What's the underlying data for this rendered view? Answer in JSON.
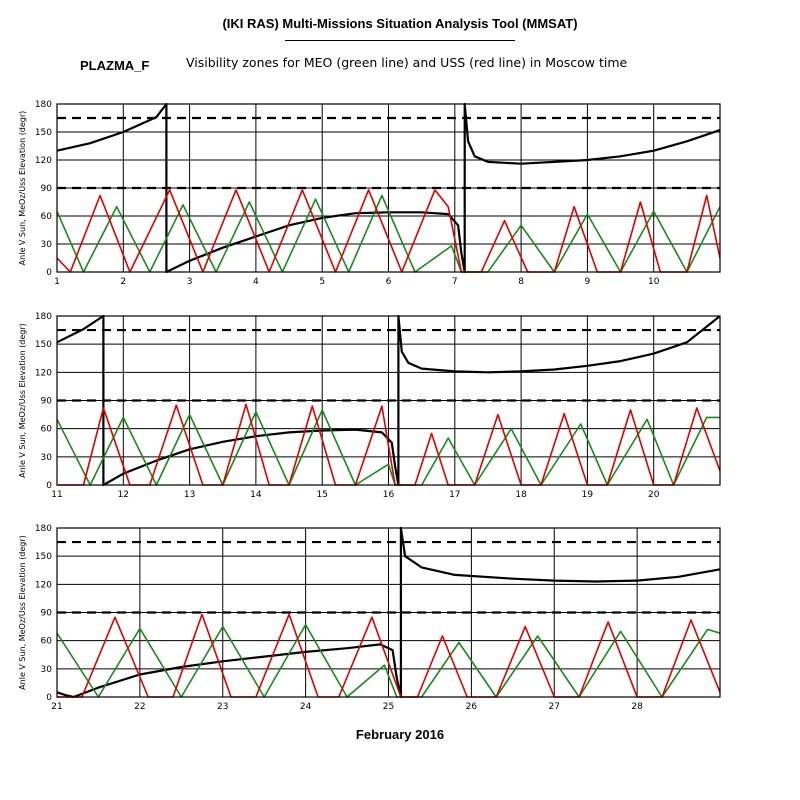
{
  "header": {
    "title": "(IKI RAS) Multi-Missions Situation Analysis Tool (MMSAT)",
    "mission": "PLAZMA_F",
    "subtitle": "Visibility zones for MEO (green line) and USS (red line) in Moscow time"
  },
  "colors": {
    "meo": "#1a8a1a",
    "uss": "#e00000",
    "sun": "#000000"
  },
  "chart_data": {
    "type": "line",
    "xlabel": "February 2016",
    "ylabel": "Anle V Sun, MeOz/Uss Elevation (degr)",
    "yticks": [
      0,
      30,
      60,
      90,
      120,
      150,
      180
    ],
    "ylim": [
      0,
      180
    ],
    "reference_lines": [
      90,
      165
    ],
    "grid": true,
    "panels": [
      {
        "xlim": [
          1,
          11
        ],
        "xticks": [
          1,
          2,
          3,
          4,
          5,
          6,
          7,
          8,
          9,
          10
        ],
        "series": [
          {
            "name": "Anle V Sun",
            "x": [
              1,
              1.5,
              2,
              2.5,
              2.65,
              2.65,
              3,
              3.5,
              4,
              4.5,
              5,
              5.5,
              6,
              6.5,
              6.9,
              7.05,
              7.1,
              7.15,
              7.15,
              7.2,
              7.3,
              7.5,
              8,
              8.5,
              9,
              9.5,
              10,
              10.5,
              11
            ],
            "y": [
              130,
              138,
              150,
              166,
              180,
              0,
              12,
              26,
              38,
              50,
              58,
              63,
              64,
              64,
              62,
              50,
              20,
              0,
              180,
              140,
              124,
              118,
              116,
              118,
              120,
              124,
              130,
              140,
              152
            ]
          },
          {
            "name": "MEO",
            "x": [
              1,
              1.4,
              1.9,
              2.4,
              2.9,
              3.4,
              3.9,
              4.4,
              4.9,
              5.4,
              5.9,
              6.4,
              6.95,
              7.1,
              7.5,
              8.0,
              8.5,
              9.0,
              9.5,
              10.0,
              10.5,
              11
            ],
            "y": [
              65,
              0,
              70,
              0,
              72,
              0,
              75,
              0,
              78,
              0,
              82,
              0,
              28,
              0,
              0,
              50,
              0,
              62,
              0,
              65,
              0,
              70
            ]
          },
          {
            "name": "USS",
            "x": [
              1,
              1.2,
              1.65,
              2.1,
              2.7,
              3.2,
              3.7,
              4.2,
              4.7,
              5.2,
              5.7,
              6.2,
              6.7,
              6.9,
              7.1,
              7.4,
              7.75,
              8.1,
              8.5,
              8.8,
              9.15,
              9.5,
              9.8,
              10.1,
              10.5,
              10.8,
              11
            ],
            "y": [
              15,
              0,
              82,
              0,
              88,
              0,
              88,
              0,
              88,
              0,
              88,
              0,
              88,
              70,
              0,
              0,
              55,
              0,
              0,
              70,
              0,
              0,
              75,
              0,
              0,
              82,
              15
            ]
          }
        ]
      },
      {
        "xlim": [
          11,
          21
        ],
        "xticks": [
          11,
          12,
          13,
          14,
          15,
          16,
          17,
          18,
          19,
          20
        ],
        "series": [
          {
            "name": "Anle V Sun",
            "x": [
              11,
              11.4,
              11.7,
              11.7,
              12,
              12.5,
              13,
              13.5,
              14,
              14.5,
              15,
              15.5,
              15.9,
              16.05,
              16.1,
              16.15,
              16.15,
              16.2,
              16.3,
              16.5,
              17,
              17.5,
              18,
              18.5,
              19,
              19.5,
              20,
              20.5,
              21
            ],
            "y": [
              152,
              166,
              180,
              0,
              12,
              26,
              38,
              46,
              52,
              56,
              58,
              59,
              56,
              45,
              20,
              0,
              180,
              142,
              130,
              124,
              121,
              120,
              121,
              123,
              127,
              132,
              140,
              152,
              180
            ]
          },
          {
            "name": "MEO",
            "x": [
              11,
              11.5,
              12,
              12.5,
              13,
              13.5,
              14,
              14.5,
              15,
              15.5,
              16,
              16.1,
              16.5,
              16.9,
              17.3,
              17.85,
              18.3,
              18.9,
              19.3,
              19.9,
              20.3,
              20.8,
              21
            ],
            "y": [
              70,
              0,
              72,
              0,
              75,
              0,
              78,
              0,
              80,
              0,
              22,
              0,
              0,
              50,
              0,
              60,
              0,
              65,
              0,
              70,
              0,
              72,
              72
            ]
          },
          {
            "name": "USS",
            "x": [
              11,
              11.4,
              11.7,
              12.1,
              12.4,
              12.8,
              13.2,
              13.5,
              13.85,
              14.2,
              14.5,
              14.85,
              15.2,
              15.5,
              15.9,
              16.1,
              16.4,
              16.65,
              16.9,
              17.3,
              17.65,
              18.0,
              18.3,
              18.65,
              19.0,
              19.3,
              19.65,
              20.0,
              20.3,
              20.65,
              21
            ],
            "y": [
              0,
              0,
              82,
              0,
              0,
              85,
              0,
              0,
              86,
              0,
              0,
              84,
              0,
              0,
              84,
              0,
              0,
              55,
              0,
              0,
              75,
              0,
              0,
              76,
              0,
              0,
              80,
              0,
              0,
              82,
              15
            ]
          }
        ]
      },
      {
        "xlim": [
          21,
          29
        ],
        "xticks": [
          21,
          22,
          23,
          24,
          25,
          26,
          27,
          28
        ],
        "series": [
          {
            "name": "Anle V Sun",
            "x": [
              21,
              21.1,
              21.2,
              21.5,
              22,
              22.5,
              23,
              23.5,
              24,
              24.5,
              24.9,
              25.05,
              25.1,
              25.15,
              25.15,
              25.2,
              25.4,
              25.8,
              26.5,
              27,
              27.5,
              28,
              28.5,
              29
            ],
            "y": [
              5,
              2,
              0,
              10,
              24,
              32,
              38,
              43,
              48,
              52,
              56,
              50,
              20,
              0,
              180,
              150,
              138,
              130,
              126,
              124,
              123,
              124,
              128,
              136
            ]
          },
          {
            "name": "MEO",
            "x": [
              21,
              21.5,
              22,
              22.5,
              23,
              23.5,
              24,
              24.5,
              24.95,
              25.1,
              25.4,
              25.85,
              26.3,
              26.8,
              27.3,
              27.8,
              28.3,
              28.85,
              29
            ],
            "y": [
              68,
              0,
              73,
              0,
              75,
              0,
              77,
              0,
              34,
              0,
              0,
              58,
              0,
              65,
              0,
              70,
              0,
              72,
              68
            ]
          },
          {
            "name": "USS",
            "x": [
              21,
              21.3,
              21.7,
              22.1,
              22.4,
              22.75,
              23.1,
              23.4,
              23.8,
              24.15,
              24.4,
              24.8,
              25.15,
              25.35,
              25.65,
              25.95,
              26.3,
              26.65,
              27.0,
              27.3,
              27.65,
              28.0,
              28.3,
              28.65,
              29
            ],
            "y": [
              0,
              0,
              85,
              0,
              0,
              88,
              0,
              0,
              88,
              0,
              0,
              85,
              0,
              0,
              65,
              0,
              0,
              75,
              0,
              0,
              80,
              0,
              0,
              82,
              5
            ]
          }
        ]
      }
    ]
  }
}
